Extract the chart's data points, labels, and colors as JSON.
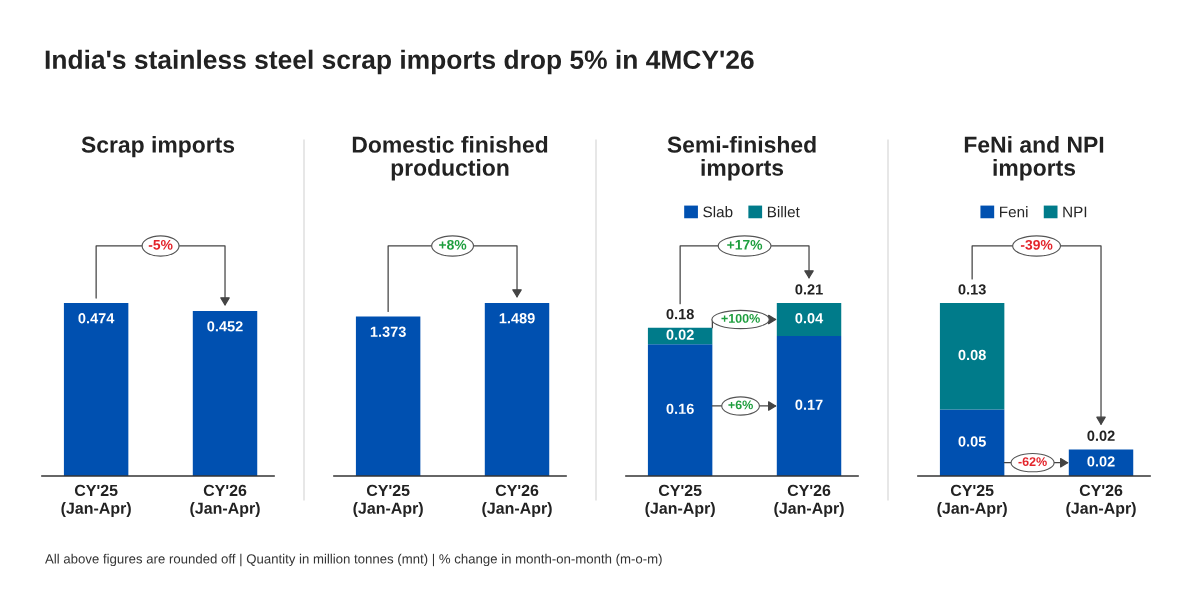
{
  "chart_data": [
    {
      "type": "bar",
      "title": "Scrap imports",
      "categories": [
        "CY'25\n(Jan-Apr)",
        "CY'26\n(Jan-Apr)"
      ],
      "values": [
        0.474,
        0.452
      ],
      "color": "#0050B0",
      "data_labels": true,
      "tick_labels": "x",
      "annotations": [
        "India's stainless steel scrap imports drop 5% in 4MCY'26",
        {
          "text": "-5%",
          "x": "CY'26\n(Jan-Apr)",
          "y": 0.452
        },
        "All above figures are rounded off | Quantity in million tonnes (mnt) | % change in month-on-month (m-o-m)"
      ]
    },
    {
      "type": "bar",
      "title": "Domestic finished\nproduction",
      "categories": [
        "CY'25\n(Jan-Apr)",
        "CY'26\n(Jan-Apr)"
      ],
      "values": [
        1.373,
        1.489
      ],
      "color": "#0050B0",
      "data_labels": true,
      "tick_labels": "x",
      "annotations": [
        {
          "text": "+8%",
          "x": "CY'26\n(Jan-Apr)",
          "y": 1.489
        }
      ]
    },
    {
      "type": "bar",
      "title": "Semi-finished\nimports",
      "categories": [
        "CY'25\n(Jan-Apr)",
        "CY'26\n(Jan-Apr)"
      ],
      "stacked": true,
      "series": [
        {
          "name": "Slab",
          "color": "#0050B0",
          "values": [
            0.16,
            0.17
          ]
        },
        {
          "name": "Billet",
          "color": "#007B8A",
          "values": [
            0.02,
            0.04
          ]
        }
      ],
      "totals": [
        "0.18",
        "0.21"
      ],
      "data_labels": true,
      "legend": "top",
      "tick_labels": "x",
      "annotations": [
        "+17%",
        "+6%",
        "+100%"
      ]
    },
    {
      "type": "bar",
      "title": "FeNi and NPI\nimports",
      "categories": [
        "CY'25\n(Jan-Apr)",
        "CY'26\n(Jan-Apr)"
      ],
      "stacked": true,
      "series": [
        {
          "name": "Feni",
          "color": "#0050B0",
          "values": [
            0.05,
            0.02
          ]
        },
        {
          "name": "NPI",
          "color": "#007B8A",
          "values": [
            0.08,
            null
          ]
        }
      ],
      "totals": [
        "0.13",
        "0.02"
      ],
      "data_labels": true,
      "legend": "top",
      "tick_labels": "x",
      "annotations": [
        "-39%",
        "-62%"
      ]
    }
  ]
}
